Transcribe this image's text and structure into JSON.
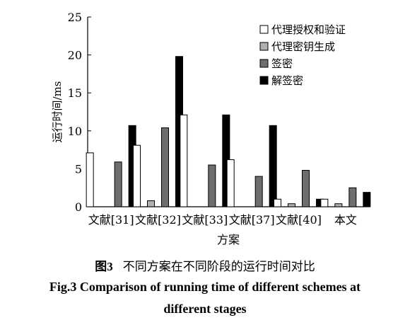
{
  "chart_data": {
    "type": "bar",
    "categories": [
      "文献[31]",
      "文献[32]",
      "文献[33]",
      "文献[37]",
      "文献[40]",
      "本文"
    ],
    "series": [
      {
        "name": "代理授权和验证",
        "color": "#ffffff",
        "values": [
          7.1,
          8.1,
          12.1,
          6.2,
          1.0,
          1.0
        ]
      },
      {
        "name": "代理密钥生成",
        "color": "#b0b0b0",
        "values": [
          0,
          0.8,
          0,
          0,
          0.4,
          0.4
        ]
      },
      {
        "name": "签密",
        "color": "#6e6e6e",
        "values": [
          5.9,
          10.4,
          5.5,
          4.0,
          4.8,
          2.5
        ]
      },
      {
        "name": "解签密",
        "color": "#000000",
        "values": [
          10.7,
          19.8,
          12.1,
          10.7,
          1.0,
          1.9
        ]
      }
    ],
    "xlabel": "方案",
    "ylabel": "运行时间/ms",
    "ylim": [
      0,
      25
    ],
    "yticks": [
      0,
      5,
      10,
      15,
      20,
      25
    ],
    "grid": false,
    "legend_position": "top-right"
  },
  "caption": {
    "cn_label": "图3",
    "cn_text": "不同方案在不同阶段的运行时间对比",
    "en_line1": "Fig.3   Comparison of running time of different schemes at",
    "en_line2": "different stages"
  }
}
